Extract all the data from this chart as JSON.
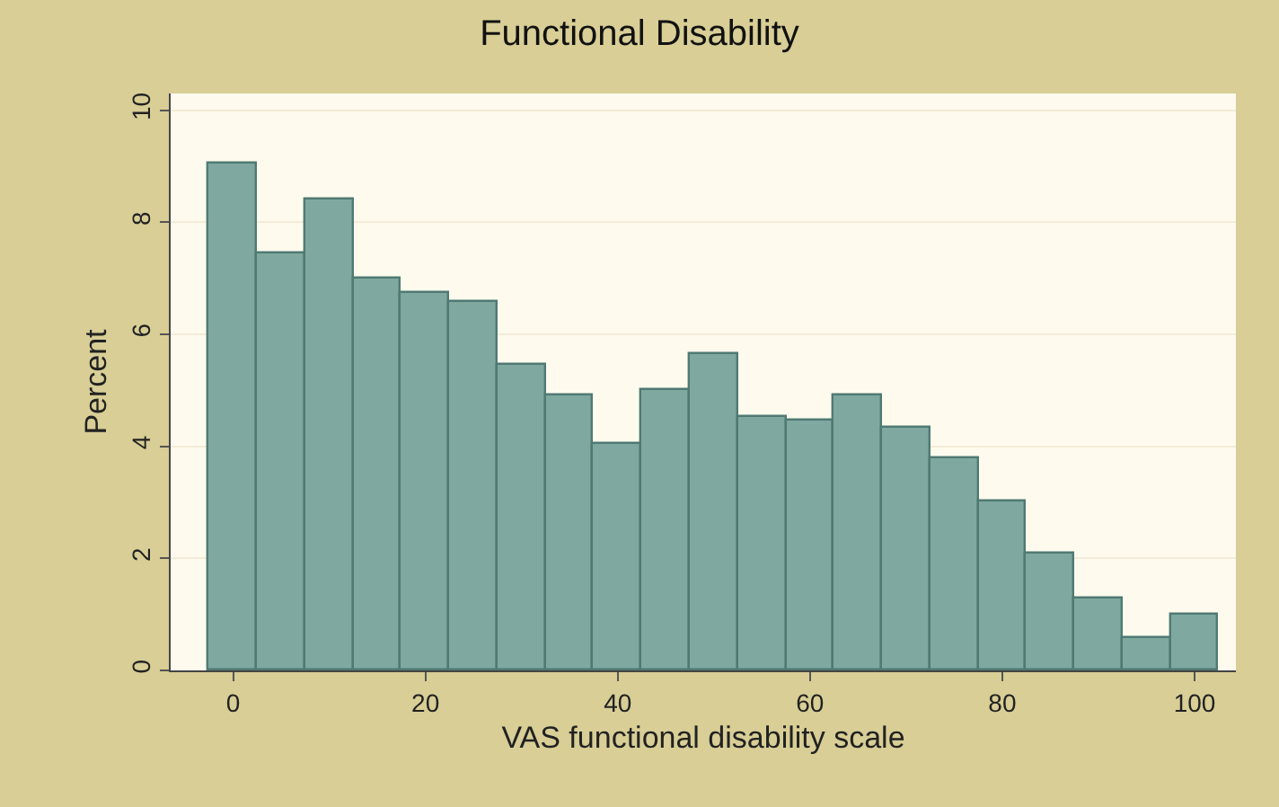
{
  "chart_data": {
    "type": "histogram",
    "title": "Functional Disability",
    "xlabel": "VAS functional disability scale",
    "ylabel": "Percent",
    "bins": [
      -2.5,
      2.5,
      7.5,
      12.5,
      17.5,
      22.5,
      27.5,
      32.5,
      37.5,
      42.5,
      47.5,
      52.5,
      57.5,
      62.5,
      67.5,
      72.5,
      77.5,
      82.5,
      87.5,
      92.5,
      97.5,
      102.5
    ],
    "values": [
      9.04,
      7.45,
      8.41,
      6.99,
      6.73,
      6.57,
      5.45,
      4.9,
      4.04,
      5.02,
      5.64,
      4.51,
      4.45,
      4.92,
      4.34,
      3.78,
      3.02,
      2.09,
      1.27,
      0.58,
      1.01
    ],
    "color": "#7fa8a0",
    "xlim": [
      -6.5,
      104.3
    ],
    "xticks": [
      0,
      20,
      40,
      60,
      80,
      100
    ],
    "ylim": [
      0,
      10.3
    ],
    "yticks": [
      0,
      2,
      4,
      6,
      8,
      10
    ],
    "grid": "y"
  }
}
